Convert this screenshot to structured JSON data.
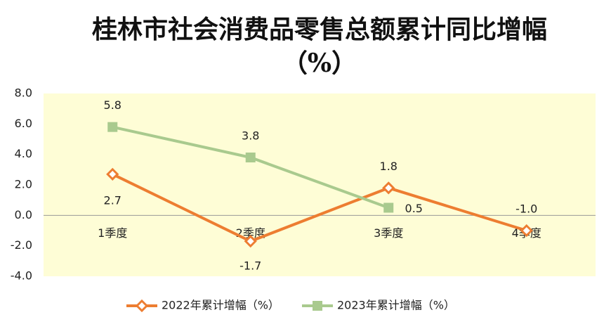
{
  "chart_data": {
    "type": "line",
    "title": "桂林市社会消费品零售总额累计同比增幅（%）",
    "categories": [
      "1季度",
      "2季度",
      "3季度",
      "4季度"
    ],
    "series": [
      {
        "name": "2022年累计增幅（%）",
        "color": "#ED7D31",
        "marker": "diamond",
        "values": [
          2.7,
          -1.7,
          1.8,
          -1.0
        ],
        "value_labels": [
          "2.7",
          "-1.7",
          "1.8",
          "-1.0"
        ]
      },
      {
        "name": "2023年累计增幅（%）",
        "color": "#A9CA8E",
        "marker": "square",
        "values": [
          5.8,
          3.8,
          0.5,
          null
        ],
        "value_labels": [
          "5.8",
          "3.8",
          "0.5",
          null
        ]
      }
    ],
    "ylim": [
      -4,
      8
    ],
    "yticks": [
      {
        "value": -4,
        "label": "-4.0"
      },
      {
        "value": -2,
        "label": "-2.0"
      },
      {
        "value": 0,
        "label": "0.0"
      },
      {
        "value": 2,
        "label": "2.0"
      },
      {
        "value": 4,
        "label": "4.0"
      },
      {
        "value": 6,
        "label": "6.0"
      },
      {
        "value": 8,
        "label": "8.0"
      }
    ],
    "legend": "bottom"
  }
}
